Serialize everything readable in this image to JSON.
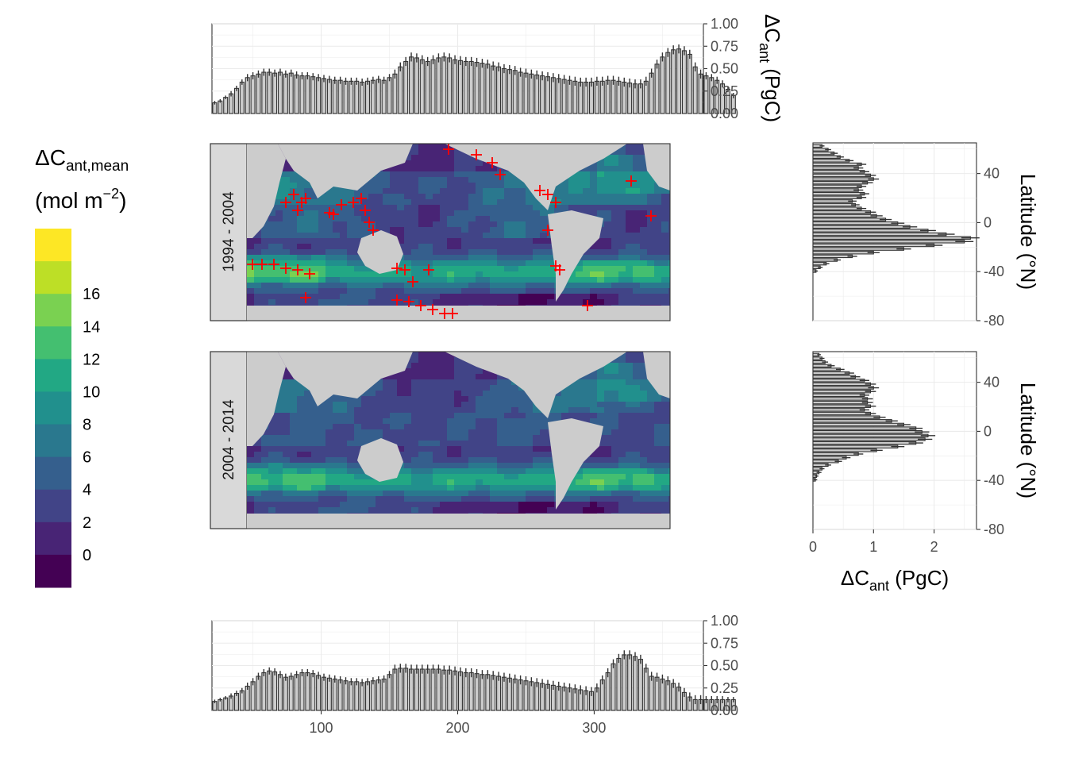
{
  "chart_data": [
    {
      "id": "top_lon_hist",
      "type": "bar",
      "ylabel_main": "ΔC",
      "ylabel_sub": "ant",
      "ylabel_unit": " (PgC)",
      "ylim": [
        0,
        1
      ],
      "yticks": [
        "0.00",
        "0.25",
        "0.50",
        "0.75",
        "1.00"
      ],
      "xlim": [
        20,
        380
      ],
      "x_start": 20,
      "x_step": 4,
      "values": [
        0.12,
        0.14,
        0.18,
        0.22,
        0.28,
        0.35,
        0.4,
        0.42,
        0.44,
        0.46,
        0.46,
        0.45,
        0.46,
        0.44,
        0.45,
        0.43,
        0.42,
        0.42,
        0.41,
        0.4,
        0.39,
        0.38,
        0.37,
        0.37,
        0.36,
        0.36,
        0.36,
        0.35,
        0.36,
        0.37,
        0.38,
        0.37,
        0.4,
        0.44,
        0.52,
        0.58,
        0.63,
        0.62,
        0.6,
        0.58,
        0.6,
        0.62,
        0.63,
        0.62,
        0.6,
        0.59,
        0.58,
        0.58,
        0.57,
        0.56,
        0.55,
        0.53,
        0.52,
        0.5,
        0.49,
        0.48,
        0.46,
        0.45,
        0.44,
        0.43,
        0.42,
        0.41,
        0.4,
        0.39,
        0.38,
        0.37,
        0.36,
        0.35,
        0.35,
        0.35,
        0.36,
        0.36,
        0.37,
        0.37,
        0.36,
        0.35,
        0.34,
        0.33,
        0.33,
        0.36,
        0.45,
        0.55,
        0.63,
        0.68,
        0.71,
        0.72,
        0.7,
        0.66,
        0.52,
        0.44,
        0.42,
        0.4,
        0.37,
        0.33,
        0.27,
        0.2
      ],
      "errors": [
        0.02,
        0.02,
        0.02,
        0.03,
        0.03,
        0.03,
        0.04,
        0.04,
        0.04,
        0.04,
        0.04,
        0.04,
        0.04,
        0.04,
        0.04,
        0.04,
        0.04,
        0.04,
        0.04,
        0.04,
        0.04,
        0.04,
        0.04,
        0.04,
        0.04,
        0.04,
        0.04,
        0.04,
        0.04,
        0.04,
        0.04,
        0.04,
        0.04,
        0.05,
        0.05,
        0.05,
        0.05,
        0.05,
        0.05,
        0.05,
        0.05,
        0.05,
        0.05,
        0.05,
        0.05,
        0.05,
        0.05,
        0.05,
        0.05,
        0.05,
        0.05,
        0.05,
        0.05,
        0.05,
        0.05,
        0.05,
        0.05,
        0.05,
        0.05,
        0.05,
        0.05,
        0.05,
        0.05,
        0.05,
        0.05,
        0.05,
        0.05,
        0.05,
        0.05,
        0.05,
        0.05,
        0.05,
        0.05,
        0.05,
        0.05,
        0.05,
        0.05,
        0.05,
        0.05,
        0.05,
        0.05,
        0.05,
        0.05,
        0.05,
        0.05,
        0.05,
        0.05,
        0.05,
        0.05,
        0.05,
        0.04,
        0.04,
        0.04,
        0.04,
        0.03,
        0.03
      ]
    },
    {
      "id": "bottom_lon_hist",
      "type": "bar",
      "ylim": [
        0,
        1
      ],
      "yticks": [
        "0.00",
        "0.25",
        "0.50",
        "0.75",
        "1.00"
      ],
      "xlim": [
        20,
        380
      ],
      "xticks": [
        "100",
        "200",
        "300"
      ],
      "x_start": 20,
      "x_step": 4,
      "values": [
        0.1,
        0.12,
        0.14,
        0.16,
        0.19,
        0.22,
        0.27,
        0.32,
        0.38,
        0.42,
        0.44,
        0.43,
        0.4,
        0.37,
        0.38,
        0.4,
        0.42,
        0.42,
        0.41,
        0.39,
        0.37,
        0.36,
        0.35,
        0.34,
        0.33,
        0.32,
        0.32,
        0.31,
        0.32,
        0.33,
        0.34,
        0.35,
        0.4,
        0.46,
        0.47,
        0.47,
        0.46,
        0.46,
        0.46,
        0.46,
        0.46,
        0.46,
        0.45,
        0.45,
        0.44,
        0.43,
        0.42,
        0.42,
        0.41,
        0.4,
        0.4,
        0.39,
        0.38,
        0.37,
        0.36,
        0.35,
        0.34,
        0.33,
        0.32,
        0.31,
        0.3,
        0.29,
        0.28,
        0.27,
        0.26,
        0.25,
        0.24,
        0.23,
        0.22,
        0.21,
        0.25,
        0.34,
        0.42,
        0.52,
        0.58,
        0.62,
        0.62,
        0.6,
        0.57,
        0.47,
        0.38,
        0.37,
        0.35,
        0.33,
        0.3,
        0.26,
        0.2,
        0.15,
        0.12,
        0.12,
        0.12,
        0.12,
        0.12,
        0.12,
        0.12,
        0.12
      ],
      "errors": [
        0.02,
        0.02,
        0.02,
        0.03,
        0.03,
        0.03,
        0.04,
        0.04,
        0.04,
        0.04,
        0.04,
        0.04,
        0.04,
        0.04,
        0.04,
        0.04,
        0.04,
        0.04,
        0.04,
        0.04,
        0.04,
        0.04,
        0.04,
        0.04,
        0.04,
        0.04,
        0.04,
        0.04,
        0.04,
        0.04,
        0.04,
        0.04,
        0.04,
        0.05,
        0.05,
        0.05,
        0.05,
        0.05,
        0.05,
        0.05,
        0.05,
        0.05,
        0.05,
        0.05,
        0.05,
        0.05,
        0.05,
        0.05,
        0.05,
        0.05,
        0.05,
        0.05,
        0.05,
        0.05,
        0.05,
        0.05,
        0.05,
        0.05,
        0.05,
        0.05,
        0.05,
        0.05,
        0.05,
        0.05,
        0.05,
        0.05,
        0.05,
        0.05,
        0.05,
        0.05,
        0.05,
        0.05,
        0.05,
        0.05,
        0.05,
        0.05,
        0.05,
        0.05,
        0.05,
        0.05,
        0.05,
        0.05,
        0.05,
        0.05,
        0.05,
        0.05,
        0.05,
        0.05,
        0.05,
        0.05,
        0.04,
        0.04,
        0.04,
        0.04,
        0.03,
        0.03
      ]
    },
    {
      "id": "lat_hist_1994_2004",
      "type": "bar",
      "orientation": "horizontal",
      "ylabel": "Latitude (°N)",
      "ylim": [
        -80,
        65
      ],
      "yticks": [
        "-80",
        "-40",
        "0",
        "40"
      ],
      "xlim": [
        0,
        2.7
      ],
      "lat_start": 64,
      "lat_step": -3,
      "values": [
        0.15,
        0.25,
        0.35,
        0.45,
        0.6,
        0.8,
        0.75,
        0.85,
        0.95,
        1.0,
        0.9,
        0.8,
        0.75,
        0.85,
        0.8,
        0.65,
        0.7,
        0.8,
        0.95,
        1.05,
        1.2,
        1.4,
        1.6,
        1.9,
        2.2,
        2.6,
        2.5,
        2.0,
        1.5,
        1.0,
        0.65,
        0.4,
        0.22,
        0.12,
        0.05
      ],
      "errors": [
        0.04,
        0.05,
        0.06,
        0.06,
        0.07,
        0.08,
        0.08,
        0.08,
        0.09,
        0.09,
        0.09,
        0.08,
        0.08,
        0.08,
        0.08,
        0.07,
        0.07,
        0.08,
        0.09,
        0.1,
        0.1,
        0.11,
        0.12,
        0.13,
        0.14,
        0.15,
        0.15,
        0.14,
        0.12,
        0.1,
        0.08,
        0.06,
        0.05,
        0.04,
        0.03
      ]
    },
    {
      "id": "lat_hist_2004_2014",
      "type": "bar",
      "orientation": "horizontal",
      "xlabel_main": "ΔC",
      "xlabel_sub": "ant",
      "xlabel_unit": " (PgC)",
      "ylabel": "Latitude (°N)",
      "ylim": [
        -80,
        65
      ],
      "yticks": [
        "-80",
        "-40",
        "0",
        "40"
      ],
      "xlim": [
        0,
        2.7
      ],
      "xticks": [
        "0",
        "1",
        "2"
      ],
      "lat_start": 64,
      "lat_step": -3,
      "values": [
        0.1,
        0.15,
        0.2,
        0.3,
        0.45,
        0.6,
        0.7,
        0.85,
        0.95,
        1.0,
        0.95,
        0.85,
        0.9,
        0.9,
        0.95,
        0.85,
        0.95,
        1.1,
        1.3,
        1.5,
        1.7,
        1.8,
        1.9,
        1.85,
        1.7,
        1.4,
        1.05,
        0.75,
        0.55,
        0.42,
        0.25,
        0.15,
        0.1,
        0.06,
        0.04
      ],
      "errors": [
        0.03,
        0.04,
        0.05,
        0.06,
        0.07,
        0.08,
        0.08,
        0.08,
        0.09,
        0.09,
        0.09,
        0.08,
        0.09,
        0.09,
        0.09,
        0.08,
        0.09,
        0.1,
        0.1,
        0.11,
        0.11,
        0.12,
        0.12,
        0.12,
        0.12,
        0.11,
        0.1,
        0.08,
        0.07,
        0.06,
        0.05,
        0.04,
        0.04,
        0.03,
        0.03
      ]
    },
    {
      "id": "maps",
      "type": "heatmap",
      "panels": [
        "1994 - 2004",
        "2004 - 2014"
      ],
      "legend": {
        "title_main": "ΔC",
        "title_sub": "ant,mean",
        "unit_open": "(mol m",
        "unit_sup": "−2",
        "unit_close": ")",
        "labels": [
          "0",
          "2",
          "4",
          "6",
          "8",
          "10",
          "12",
          "14",
          "16"
        ],
        "colors": [
          "#440154",
          "#482475",
          "#414487",
          "#355F8D",
          "#2A788E",
          "#21908D",
          "#22A884",
          "#44BF70",
          "#7AD151",
          "#BDDF26",
          "#FDE725"
        ]
      },
      "marker_color": "#FF0000",
      "land_color": "#CCCCCC"
    }
  ]
}
